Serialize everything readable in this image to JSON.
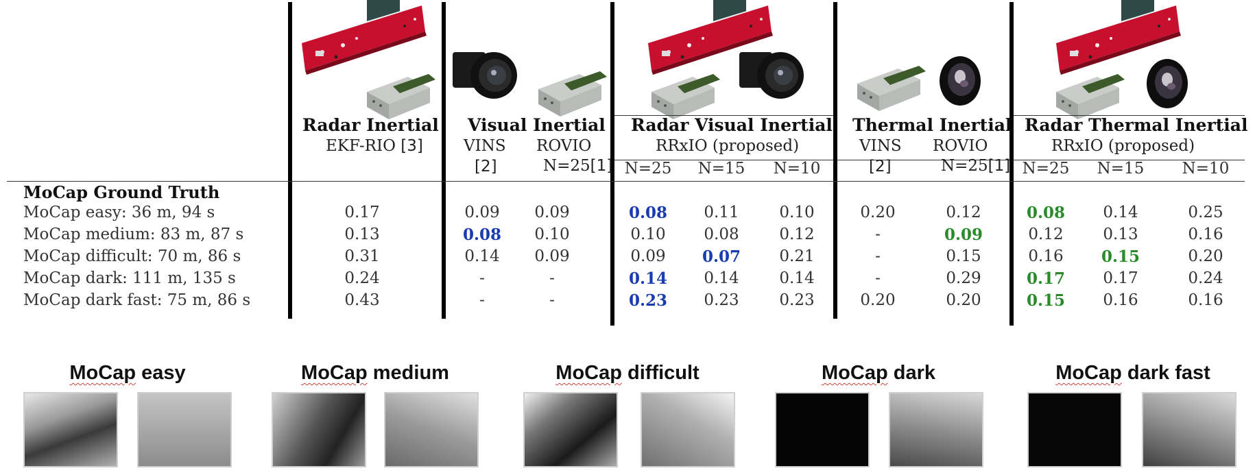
{
  "columns": {
    "rio": {
      "group": "Radar Inertial",
      "method": "EKF-RIO",
      "ref": "[3]"
    },
    "vi": {
      "group": "Visual Inertial",
      "vins": "VINS",
      "vins_ref": "[2]",
      "rovio": "ROVIO",
      "rovio_n": "N=25",
      "rovio_ref": "[1]"
    },
    "rvi": {
      "group": "Radar Visual Inertial",
      "method": "RRxIO (proposed)",
      "n": [
        "N=25",
        "N=15",
        "N=10"
      ]
    },
    "ti": {
      "group": "Thermal Inertial",
      "vins": "VINS",
      "vins_ref": "[2]",
      "rovio": "ROVIO",
      "rovio_n": "N=25",
      "rovio_ref": "[1]"
    },
    "rti": {
      "group": "Radar Thermal Inertial",
      "method": "RRxIO (proposed)",
      "n": [
        "N=25",
        "N=15",
        "N=10"
      ]
    }
  },
  "section_title": "MoCap Ground Truth",
  "rows": [
    {
      "label": "MoCap easy: 36 m, 94 s",
      "values": [
        "0.17",
        "0.09",
        "0.09",
        "0.08",
        "0.11",
        "0.10",
        "0.20",
        "0.12",
        "0.08",
        "0.14",
        "0.25"
      ]
    },
    {
      "label": "MoCap medium: 83 m, 87 s",
      "values": [
        "0.13",
        "0.08",
        "0.10",
        "0.10",
        "0.08",
        "0.12",
        "-",
        "0.09",
        "0.12",
        "0.13",
        "0.16"
      ]
    },
    {
      "label": "MoCap difficult: 70 m, 86 s",
      "values": [
        "0.31",
        "0.14",
        "0.09",
        "0.09",
        "0.07",
        "0.21",
        "-",
        "0.15",
        "0.16",
        "0.15",
        "0.20"
      ]
    },
    {
      "label": "MoCap dark: 111 m, 135 s",
      "values": [
        "0.24",
        "-",
        "-",
        "0.14",
        "0.14",
        "0.14",
        "-",
        "0.29",
        "0.17",
        "0.17",
        "0.24"
      ]
    },
    {
      "label": "MoCap dark fast: 75 m, 86 s",
      "values": [
        "0.43",
        "-",
        "-",
        "0.23",
        "0.23",
        "0.23",
        "0.20",
        "0.20",
        "0.15",
        "0.16",
        "0.16"
      ]
    }
  ],
  "highlights": {
    "blue": [
      [
        0,
        3
      ],
      [
        1,
        1
      ],
      [
        2,
        4
      ],
      [
        3,
        3
      ],
      [
        4,
        3
      ]
    ],
    "green": [
      [
        0,
        8
      ],
      [
        1,
        7
      ],
      [
        2,
        9
      ],
      [
        3,
        8
      ],
      [
        4,
        8
      ]
    ]
  },
  "image_sets": [
    {
      "title": "MoCap easy",
      "word1": "MoCap",
      "word2": "easy"
    },
    {
      "title": "MoCap medium",
      "word1": "MoCap",
      "word2": "medium"
    },
    {
      "title": "MoCap difficult",
      "word1": "MoCap",
      "word2": "difficult"
    },
    {
      "title": "MoCap dark",
      "word1": "MoCap",
      "word2": "dark"
    },
    {
      "title": "MoCap dark fast",
      "word1": "MoCap",
      "word2": "dark fast"
    }
  ],
  "colors": {
    "best_visual": "#1a3cb0",
    "best_thermal": "#2b8a2b",
    "radar_board": "#c8102e"
  },
  "icons": [
    "radar-board-icon",
    "imu-module-icon",
    "visual-camera-icon",
    "thermal-camera-icon"
  ]
}
